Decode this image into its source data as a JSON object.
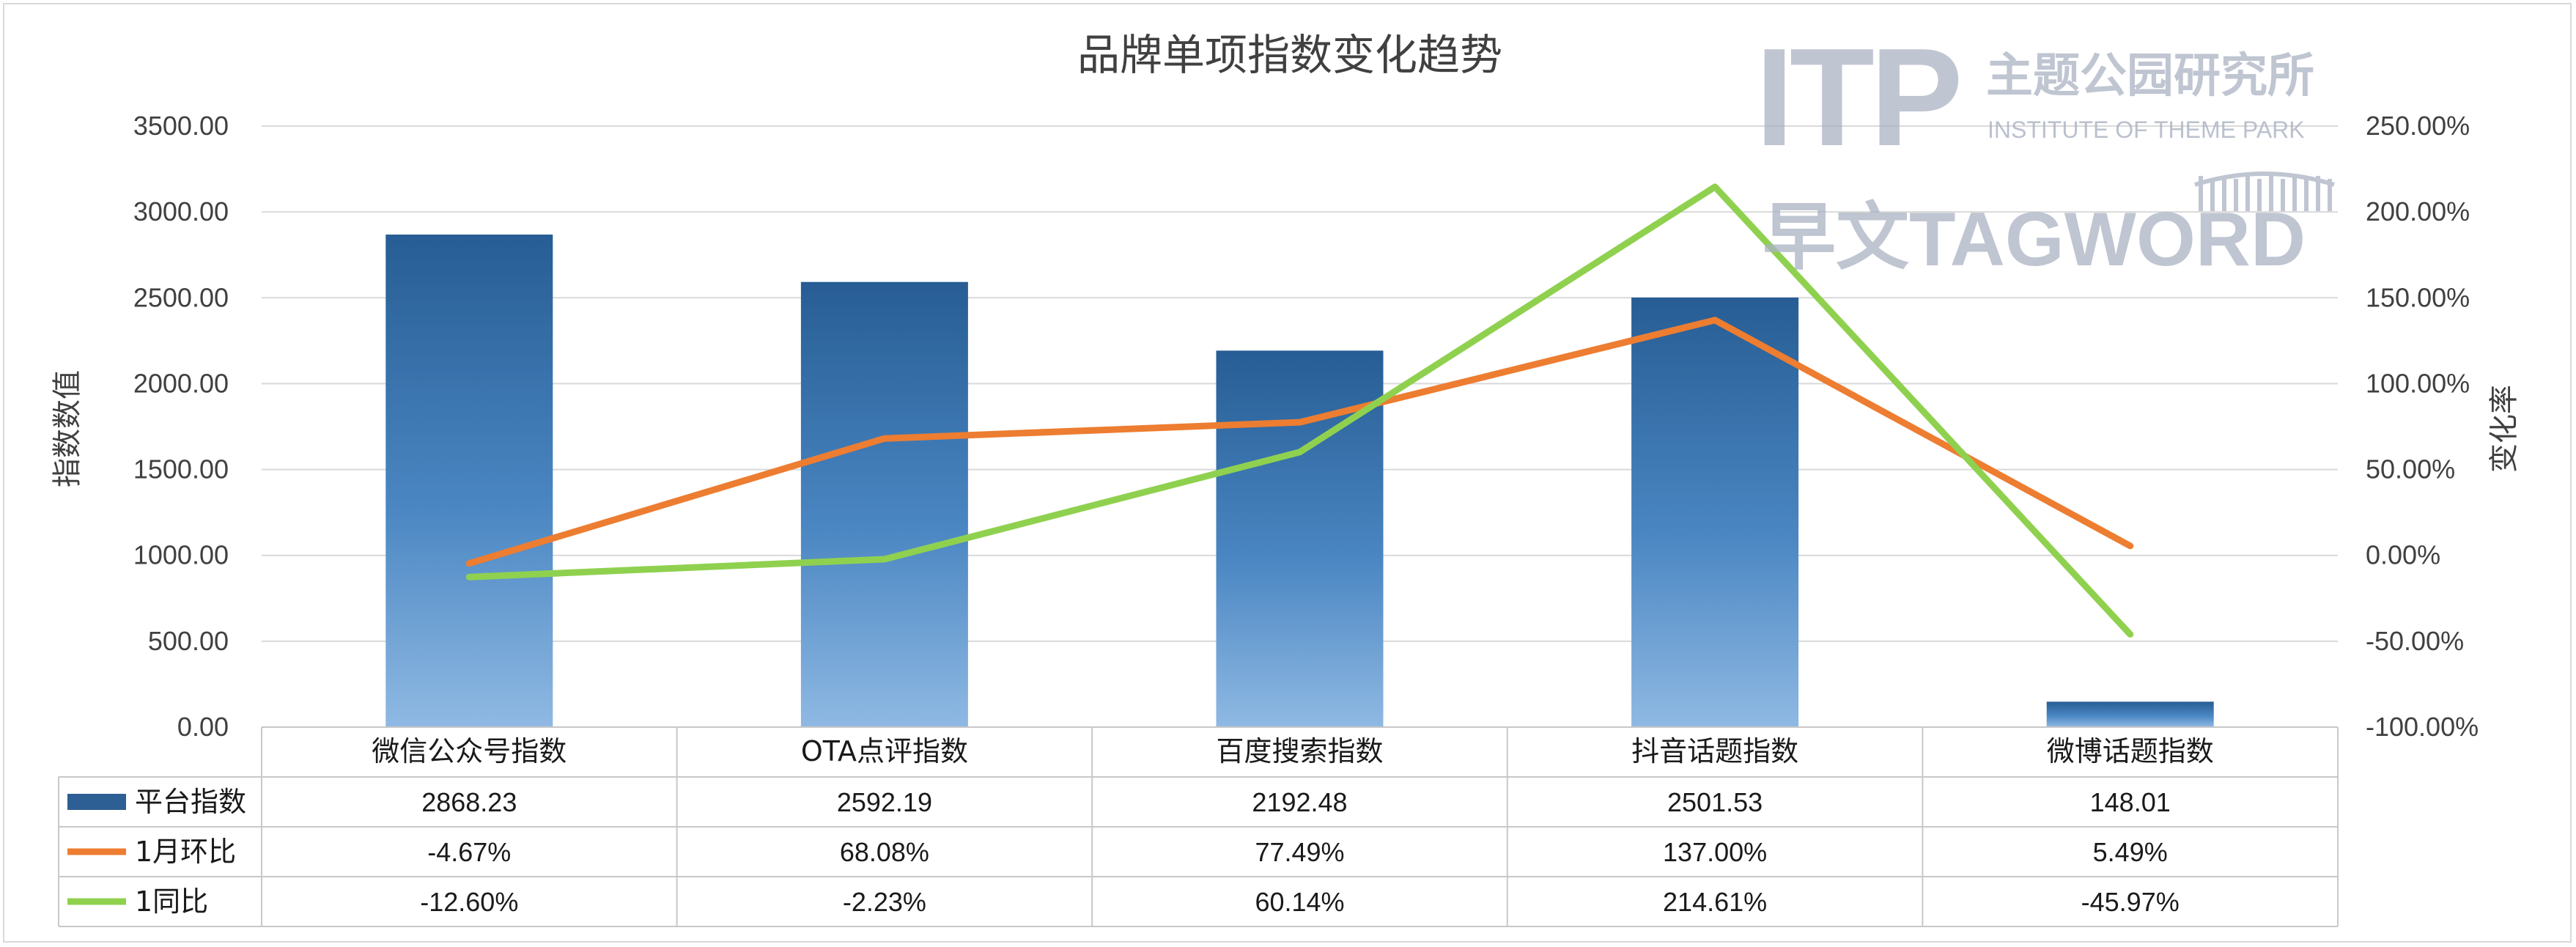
{
  "chart_data": {
    "type": "bar",
    "title": "品牌单项指数变化趋势",
    "ylabel": "指数数值",
    "y2label": "变化率",
    "ylim": [
      0,
      3500
    ],
    "y2lim": [
      -100,
      250
    ],
    "grid": true,
    "legend": "table-bottom-left",
    "categories": [
      "微信公众号指数",
      "OTA点评指数",
      "百度搜索指数",
      "抖音话题指数",
      "微博话题指数"
    ],
    "y_ticks": [
      "0.00",
      "500.00",
      "1000.00",
      "1500.00",
      "2000.00",
      "2500.00",
      "3000.00",
      "3500.00"
    ],
    "y2_ticks": [
      "-100.00%",
      "-50.00%",
      "0.00%",
      "50.00%",
      "100.00%",
      "150.00%",
      "200.00%",
      "250.00%"
    ],
    "series": [
      {
        "name": "平台指数",
        "kind": "bar",
        "axis": "left",
        "color": "#2e5f94",
        "values": [
          2868.23,
          2592.19,
          2192.48,
          2501.53,
          148.01
        ],
        "labels": [
          "2868.23",
          "2592.19",
          "2192.48",
          "2501.53",
          "148.01"
        ]
      },
      {
        "name": "1月环比",
        "kind": "line",
        "axis": "right",
        "color": "#ed7d31",
        "values": [
          -4.67,
          68.08,
          77.49,
          137.0,
          5.49
        ],
        "labels": [
          "-4.67%",
          "68.08%",
          "77.49%",
          "137.00%",
          "5.49%"
        ]
      },
      {
        "name": "1同比",
        "kind": "line",
        "axis": "right",
        "color": "#8fd14f",
        "values": [
          -12.6,
          -2.23,
          60.14,
          214.61,
          -45.97
        ],
        "labels": [
          "-12.60%",
          "-2.23%",
          "60.14%",
          "214.61%",
          "-45.97%"
        ]
      }
    ]
  },
  "watermark": {
    "itp": "ITP",
    "cn_name": "主题公园研究所",
    "en_name": "INSTITUTE OF THEME PARK",
    "tagword_cn": "早文",
    "tagword_en": "TAGWORD",
    "color": "#aab2c2"
  }
}
